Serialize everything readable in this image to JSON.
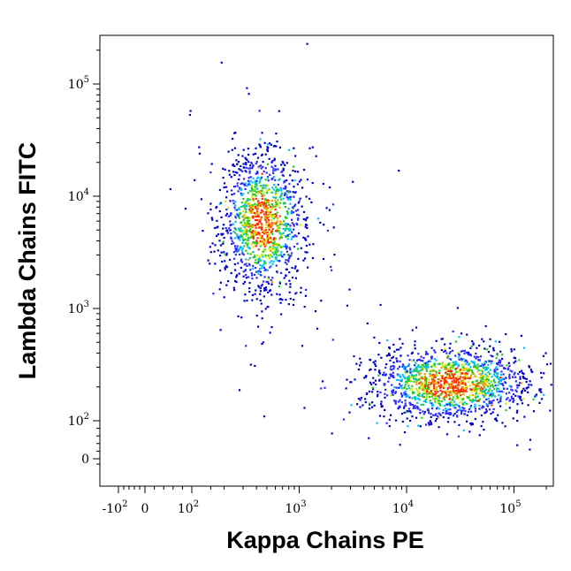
{
  "chart_data": {
    "type": "scatter",
    "title": "",
    "xlabel": "Kappa Chains PE",
    "ylabel": "Lambda Chains FITC",
    "scale": "logicle (biexponential)",
    "xlim": [
      -300,
      250000
    ],
    "ylim": [
      -40,
      250000
    ],
    "x_ticks": [
      {
        "value": -100,
        "base": "-10",
        "exp": "2"
      },
      {
        "value": 0,
        "base": "0",
        "exp": ""
      },
      {
        "value": 100,
        "base": "10",
        "exp": "2"
      },
      {
        "value": 1000,
        "base": "10",
        "exp": "3"
      },
      {
        "value": 10000,
        "base": "10",
        "exp": "4"
      },
      {
        "value": 100000,
        "base": "10",
        "exp": "5"
      }
    ],
    "y_ticks": [
      {
        "value": 0,
        "base": "0",
        "exp": ""
      },
      {
        "value": 100,
        "base": "10",
        "exp": "2"
      },
      {
        "value": 1000,
        "base": "10",
        "exp": "3"
      },
      {
        "value": 10000,
        "base": "10",
        "exp": "4"
      },
      {
        "value": 100000,
        "base": "10",
        "exp": "5"
      }
    ],
    "density_colors": [
      "#0000cc",
      "#2a2aff",
      "#00c0ff",
      "#22cc22",
      "#ccee00",
      "#ff9900",
      "#ff2a00"
    ],
    "series": [
      {
        "label": "upper-left population",
        "center": [
          450,
          6000
        ],
        "spread_log": [
          0.2,
          0.32
        ],
        "points": 1300
      },
      {
        "label": "lower-right population",
        "center": [
          25000,
          220
        ],
        "spread_log": [
          0.38,
          0.17
        ],
        "points": 1500
      }
    ],
    "grid": false,
    "legend": "none"
  }
}
